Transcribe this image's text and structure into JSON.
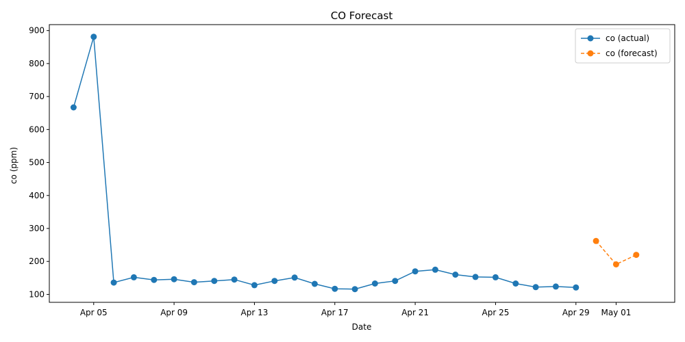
{
  "chart_data": {
    "type": "line",
    "title": "CO Forecast",
    "xlabel": "Date",
    "ylabel": "co (ppm)",
    "x_tick_labels": [
      "Apr 05",
      "Apr 09",
      "Apr 13",
      "Apr 17",
      "Apr 21",
      "Apr 25",
      "Apr 29",
      "May 01"
    ],
    "x_tick_dates": [
      "2024-04-05",
      "2024-04-09",
      "2024-04-13",
      "2024-04-17",
      "2024-04-21",
      "2024-04-25",
      "2024-04-29",
      "2024-05-01"
    ],
    "y_ticks": [
      100,
      200,
      300,
      400,
      500,
      600,
      700,
      800,
      900
    ],
    "xlim": [
      "2024-04-02T19:00",
      "2024-05-03T22:00"
    ],
    "ylim": [
      76,
      918
    ],
    "grid": false,
    "legend_position": "top-right",
    "series": [
      {
        "name": "co (actual)",
        "style": "solid",
        "color": "#1f77b4",
        "points": [
          {
            "date": "2024-04-04",
            "value": 667
          },
          {
            "date": "2024-04-05",
            "value": 881
          },
          {
            "date": "2024-04-06",
            "value": 136
          },
          {
            "date": "2024-04-07",
            "value": 152
          },
          {
            "date": "2024-04-08",
            "value": 144
          },
          {
            "date": "2024-04-09",
            "value": 146
          },
          {
            "date": "2024-04-10",
            "value": 137
          },
          {
            "date": "2024-04-11",
            "value": 141
          },
          {
            "date": "2024-04-12",
            "value": 145
          },
          {
            "date": "2024-04-13",
            "value": 128
          },
          {
            "date": "2024-04-14",
            "value": 141
          },
          {
            "date": "2024-04-15",
            "value": 151
          },
          {
            "date": "2024-04-16",
            "value": 132
          },
          {
            "date": "2024-04-17",
            "value": 117
          },
          {
            "date": "2024-04-18",
            "value": 116
          },
          {
            "date": "2024-04-19",
            "value": 133
          },
          {
            "date": "2024-04-20",
            "value": 141
          },
          {
            "date": "2024-04-21",
            "value": 170
          },
          {
            "date": "2024-04-22",
            "value": 175
          },
          {
            "date": "2024-04-23",
            "value": 160
          },
          {
            "date": "2024-04-24",
            "value": 153
          },
          {
            "date": "2024-04-25",
            "value": 152
          },
          {
            "date": "2024-04-26",
            "value": 133
          },
          {
            "date": "2024-04-27",
            "value": 122
          },
          {
            "date": "2024-04-28",
            "value": 124
          },
          {
            "date": "2024-04-29",
            "value": 121
          }
        ]
      },
      {
        "name": "co (forecast)",
        "style": "dashed",
        "color": "#ff7f0e",
        "points": [
          {
            "date": "2024-04-30",
            "value": 262
          },
          {
            "date": "2024-05-01",
            "value": 191
          },
          {
            "date": "2024-05-02",
            "value": 220
          }
        ]
      }
    ]
  }
}
